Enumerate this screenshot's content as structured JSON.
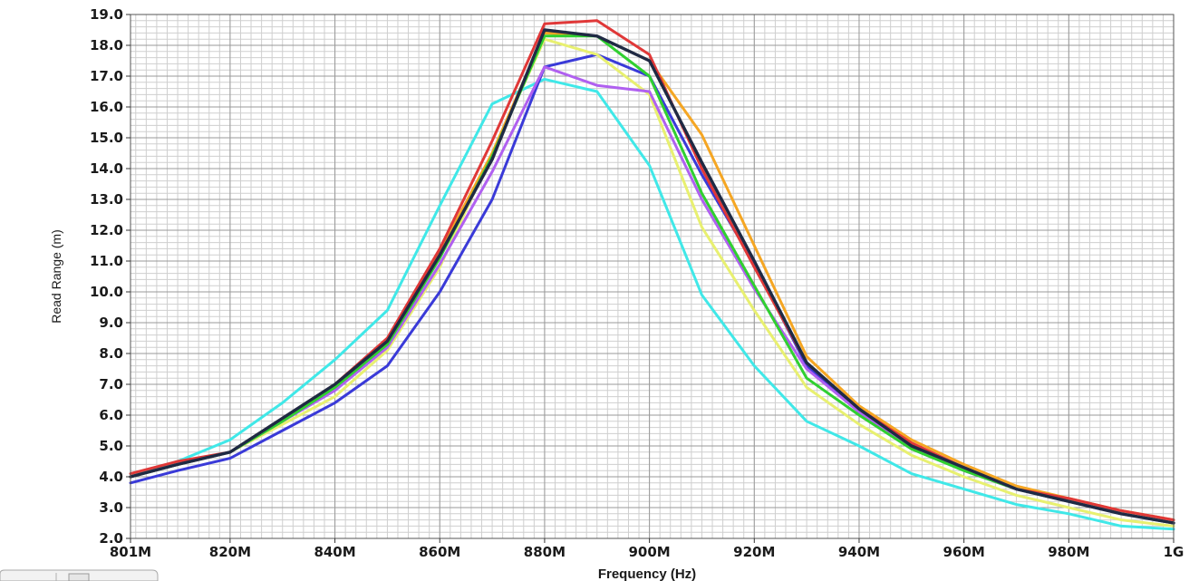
{
  "chart_data": {
    "type": "line",
    "xlabel": "Frequency (Hz)",
    "ylabel": "Read Range (m)",
    "xlim": [
      801,
      1000
    ],
    "ylim": [
      2.0,
      19.0
    ],
    "grid": true,
    "x_ticks": [
      {
        "value": 801,
        "label": "801M"
      },
      {
        "value": 820,
        "label": "820M"
      },
      {
        "value": 840,
        "label": "840M"
      },
      {
        "value": 860,
        "label": "860M"
      },
      {
        "value": 880,
        "label": "880M"
      },
      {
        "value": 900,
        "label": "900M"
      },
      {
        "value": 920,
        "label": "920M"
      },
      {
        "value": 940,
        "label": "940M"
      },
      {
        "value": 960,
        "label": "960M"
      },
      {
        "value": 980,
        "label": "980M"
      },
      {
        "value": 1000,
        "label": "1G"
      }
    ],
    "y_ticks": [
      "2.0",
      "3.0",
      "4.0",
      "5.0",
      "6.0",
      "7.0",
      "8.0",
      "9.0",
      "10.0",
      "11.0",
      "12.0",
      "13.0",
      "14.0",
      "15.0",
      "16.0",
      "17.0",
      "18.0",
      "19.0"
    ],
    "x": [
      801,
      810,
      820,
      830,
      840,
      850,
      860,
      870,
      880,
      890,
      900,
      910,
      920,
      930,
      940,
      950,
      960,
      970,
      980,
      990,
      1000
    ],
    "series": [
      {
        "color": "#40e8e8",
        "values": [
          4.0,
          4.5,
          5.2,
          6.4,
          7.8,
          9.4,
          12.8,
          16.1,
          16.9,
          16.5,
          14.1,
          9.9,
          7.6,
          5.8,
          5.0,
          4.1,
          3.6,
          3.1,
          2.8,
          2.4,
          2.3
        ]
      },
      {
        "color": "#3a3ad8",
        "values": [
          3.8,
          4.2,
          4.6,
          5.5,
          6.4,
          7.6,
          10.0,
          13.0,
          17.3,
          17.7,
          17.0,
          13.8,
          10.9,
          7.6,
          6.2,
          5.0,
          4.3,
          3.6,
          3.2,
          2.8,
          2.5
        ]
      },
      {
        "color": "#e8f070",
        "values": [
          4.0,
          4.4,
          4.8,
          5.7,
          6.6,
          8.1,
          10.8,
          14.5,
          18.2,
          17.7,
          16.4,
          12.1,
          9.4,
          6.9,
          5.7,
          4.7,
          4.0,
          3.4,
          3.0,
          2.6,
          2.4
        ]
      },
      {
        "color": "#b060f0",
        "values": [
          4.0,
          4.4,
          4.8,
          5.8,
          6.8,
          8.2,
          10.9,
          13.9,
          17.3,
          16.7,
          16.5,
          13.0,
          10.1,
          7.5,
          6.1,
          5.0,
          4.2,
          3.6,
          3.2,
          2.8,
          2.5
        ]
      },
      {
        "color": "#f5a623",
        "values": [
          4.0,
          4.4,
          4.8,
          5.9,
          7.0,
          8.4,
          11.3,
          14.5,
          18.4,
          18.3,
          17.5,
          15.1,
          11.5,
          7.9,
          6.3,
          5.2,
          4.4,
          3.7,
          3.3,
          2.9,
          2.6
        ]
      },
      {
        "color": "#e03838",
        "values": [
          4.1,
          4.5,
          4.8,
          5.9,
          7.0,
          8.5,
          11.4,
          14.9,
          18.7,
          18.8,
          17.7,
          14.0,
          10.8,
          7.7,
          6.2,
          5.1,
          4.3,
          3.6,
          3.3,
          2.9,
          2.6
        ]
      },
      {
        "color": "#30d030",
        "values": [
          4.0,
          4.4,
          4.8,
          5.8,
          6.9,
          8.3,
          11.1,
          14.4,
          18.3,
          18.3,
          17.0,
          13.2,
          10.2,
          7.2,
          6.0,
          4.9,
          4.2,
          3.6,
          3.2,
          2.8,
          2.5
        ]
      },
      {
        "color": "#1f2a44",
        "values": [
          4.0,
          4.4,
          4.8,
          5.9,
          7.0,
          8.4,
          11.2,
          14.3,
          18.5,
          18.3,
          17.5,
          14.2,
          11.0,
          7.7,
          6.2,
          5.0,
          4.3,
          3.6,
          3.2,
          2.8,
          2.5
        ]
      }
    ]
  }
}
